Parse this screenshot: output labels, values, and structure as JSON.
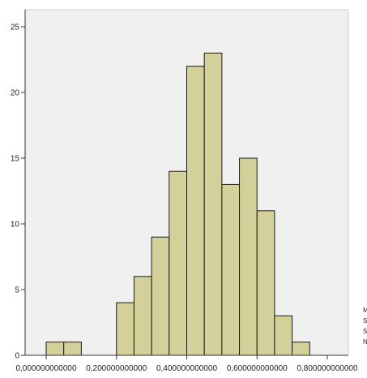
{
  "chart_data": {
    "type": "bar",
    "title": "",
    "xlabel": "",
    "ylabel": "",
    "x_ticks": [
      "0,000000000000",
      "0,200000000000",
      "0,400000000000",
      "0,600000000000",
      "0,800000000000"
    ],
    "x_tick_values": [
      0.0,
      0.2,
      0.4,
      0.6,
      0.8
    ],
    "y_ticks": [
      "0",
      "5",
      "10",
      "15",
      "20",
      "25"
    ],
    "y_tick_values": [
      0,
      5,
      10,
      15,
      20,
      25
    ],
    "xlim": [
      -0.06,
      0.86
    ],
    "ylim": [
      0,
      26.3
    ],
    "bin_edges": [
      0.0,
      0.05,
      0.1,
      0.15,
      0.2,
      0.25,
      0.3,
      0.35,
      0.4,
      0.45,
      0.5,
      0.55,
      0.6,
      0.65,
      0.7,
      0.75
    ],
    "values": [
      1,
      1,
      0,
      0,
      4,
      6,
      9,
      14,
      22,
      23,
      13,
      15,
      11,
      3,
      1
    ],
    "bar_color": "#d4d09a",
    "bar_edge_color": "#1a1a1a",
    "plot_background": "#f0f0f0",
    "grid": false
  }
}
